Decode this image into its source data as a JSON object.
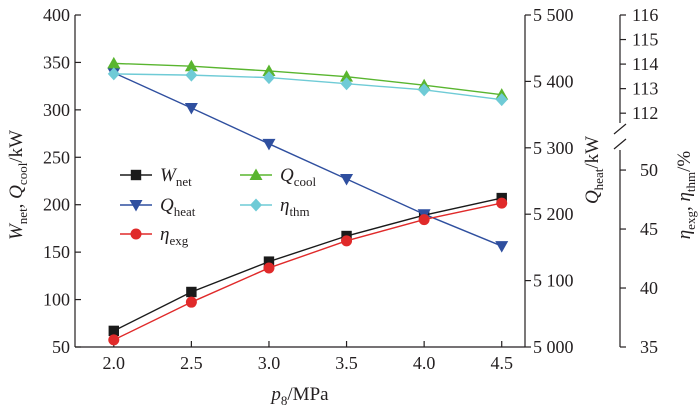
{
  "chart_data": {
    "type": "line",
    "x": [
      2.0,
      2.5,
      3.0,
      3.5,
      4.0,
      4.5
    ],
    "x_tick_labels": [
      "2.0",
      "2.5",
      "3.0",
      "3.5",
      "4.0",
      "4.5"
    ],
    "xlim": [
      1.75,
      4.65
    ],
    "xlabel": {
      "main": "p",
      "sub": "8",
      "unit": "/MPa"
    },
    "left_axis": {
      "ylim": [
        50,
        400
      ],
      "ticks": [
        50,
        100,
        150,
        200,
        250,
        300,
        350,
        400
      ],
      "tick_labels": [
        "50",
        "100",
        "150",
        "200",
        "250",
        "300",
        "350",
        "400"
      ],
      "label": {
        "w": "W",
        "w_sub": "net",
        "sep": ", ",
        "q": "Q",
        "q_sub": "cool",
        "unit": "/kW"
      }
    },
    "middle_axis": {
      "ylim": [
        5000,
        5500
      ],
      "ticks": [
        5000,
        5100,
        5200,
        5300,
        5400,
        5500
      ],
      "tick_labels": [
        "5 000",
        "5 100",
        "5 200",
        "5 300",
        "5 400",
        "5 500"
      ],
      "label": {
        "q": "Q",
        "q_sub": "heat",
        "unit": "/kW"
      }
    },
    "right_axis": {
      "lower_ylim": [
        35,
        51.7
      ],
      "lower_ticks": [
        35,
        40,
        45,
        50
      ],
      "lower_tick_labels": [
        "35",
        "40",
        "45",
        "50"
      ],
      "upper_ylim": [
        111.6,
        116
      ],
      "upper_ticks": [
        112,
        113,
        114,
        115,
        116
      ],
      "upper_tick_labels": [
        "112",
        "113",
        "114",
        "115",
        "116"
      ],
      "label": {
        "a": "η",
        "a_sub": "exg",
        "sep": ", ",
        "b": "η",
        "b_sub": "thm",
        "unit": "/%"
      }
    },
    "series": [
      {
        "name": "W",
        "name_sub": "net",
        "axis": "left",
        "color": "#1a1a1a",
        "marker": "square",
        "values": [
          67,
          108,
          140,
          167,
          189,
          207
        ]
      },
      {
        "name": "Q",
        "name_sub": "heat",
        "axis": "middle",
        "color": "#2f4f9f",
        "marker": "triangle-down",
        "values": [
          5413,
          5360,
          5306,
          5253,
          5200,
          5152
        ]
      },
      {
        "name": "η",
        "name_sub": "exg",
        "axis": "right-lower",
        "color": "#e02a2a",
        "marker": "circle",
        "values": [
          35.6,
          38.8,
          41.7,
          44.0,
          45.8,
          47.2
        ]
      },
      {
        "name": "Q",
        "name_sub": "cool",
        "axis": "left",
        "color": "#59b52f",
        "marker": "triangle-up",
        "values": [
          349,
          346,
          341,
          335,
          326,
          316
        ]
      },
      {
        "name": "η",
        "name_sub": "thm",
        "axis": "right-upper",
        "color": "#6fcbd6",
        "marker": "diamond",
        "values": [
          113.6,
          113.55,
          113.45,
          113.2,
          112.95,
          112.55
        ]
      }
    ],
    "legend": {
      "position": "center-left",
      "columns": 2
    }
  }
}
